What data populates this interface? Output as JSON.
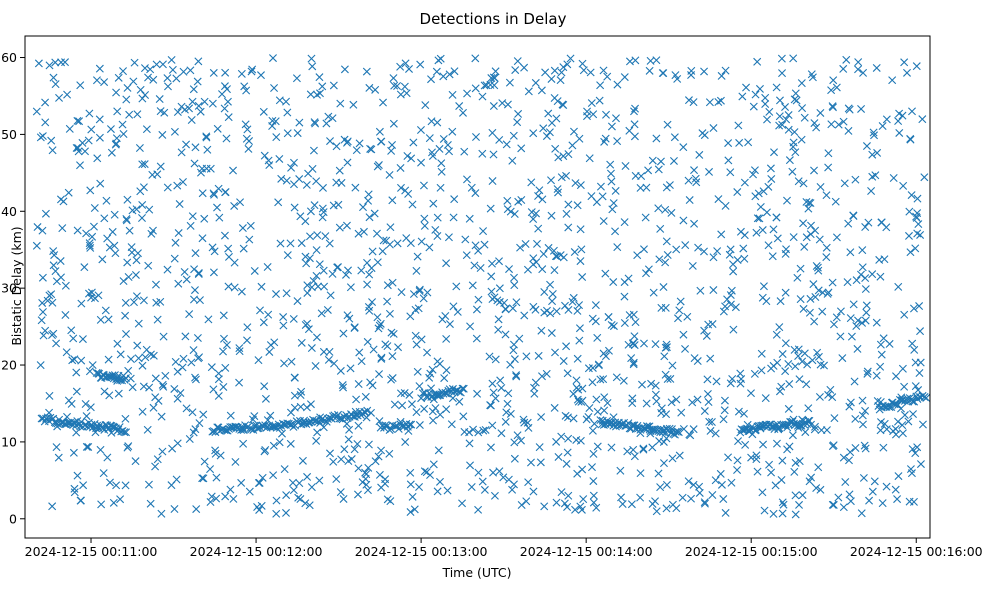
{
  "chart_data": {
    "type": "scatter",
    "title": "Detections in Delay",
    "xlabel": "Time (UTC)",
    "ylabel": "Bistatic Delay (km)",
    "marker": "x",
    "color": "#1f77b4",
    "xlim_seconds": [
      636,
      965
    ],
    "ylim": [
      -2.5,
      62.8
    ],
    "x_ticks": [
      {
        "seconds": 660,
        "label": "2024-12-15 00:11:00"
      },
      {
        "seconds": 720,
        "label": "2024-12-15 00:12:00"
      },
      {
        "seconds": 780,
        "label": "2024-12-15 00:13:00"
      },
      {
        "seconds": 840,
        "label": "2024-12-15 00:14:00"
      },
      {
        "seconds": 900,
        "label": "2024-12-15 00:15:00"
      },
      {
        "seconds": 960,
        "label": "2024-12-15 00:16:00"
      }
    ],
    "y_ticks": [
      0,
      10,
      20,
      30,
      40,
      50,
      60
    ],
    "time_range_seconds": [
      640,
      963
    ],
    "delay_range_km": [
      0.5,
      60
    ],
    "noise_detection_count": 1800,
    "tracks": [
      {
        "t_start": 642,
        "t_end": 673,
        "d_start": 13.0,
        "d_end": 11.5,
        "n": 60
      },
      {
        "t_start": 662,
        "t_end": 673,
        "d_start": 18.7,
        "d_end": 18.2,
        "n": 25
      },
      {
        "t_start": 704,
        "t_end": 734,
        "d_start": 11.5,
        "d_end": 12.3,
        "n": 55
      },
      {
        "t_start": 734,
        "t_end": 761,
        "d_start": 12.3,
        "d_end": 13.8,
        "n": 45
      },
      {
        "t_start": 765,
        "t_end": 777,
        "d_start": 11.8,
        "d_end": 12.1,
        "n": 18
      },
      {
        "t_start": 780,
        "t_end": 796,
        "d_start": 16.0,
        "d_end": 16.8,
        "n": 28
      },
      {
        "t_start": 845,
        "t_end": 874,
        "d_start": 12.6,
        "d_end": 11.2,
        "n": 60
      },
      {
        "t_start": 896,
        "t_end": 922,
        "d_start": 11.5,
        "d_end": 12.6,
        "n": 55
      },
      {
        "t_start": 946,
        "t_end": 964,
        "d_start": 14.5,
        "d_end": 15.9,
        "n": 30
      }
    ]
  }
}
